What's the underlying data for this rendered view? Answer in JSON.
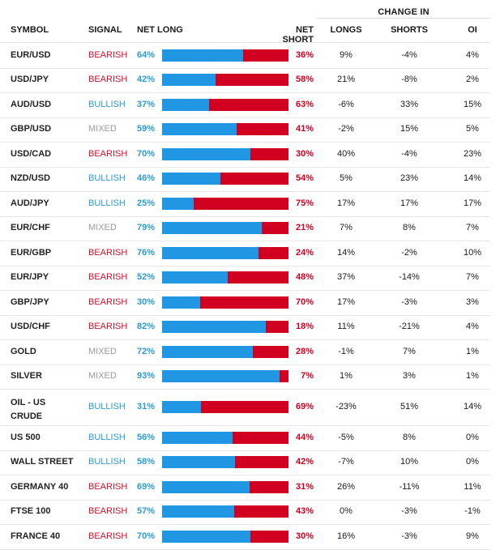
{
  "header": {
    "change_in": "CHANGE IN",
    "symbol": "SYMBOL",
    "signal": "SIGNAL",
    "net_long": "NET LONG",
    "net_short": "NET SHORT",
    "longs": "LONGS",
    "shorts": "SHORTS",
    "oi": "OI"
  },
  "colors": {
    "long": "#2196e3",
    "short": "#d10020",
    "bullish": "#2b9ad8",
    "bearish": "#d3102a",
    "mixed": "#9a9a9a"
  },
  "rows": [
    {
      "symbol": "EUR/USD",
      "signal": "BEARISH",
      "net_long": "64%",
      "net_short": "36%",
      "long_pct": 64,
      "longs": "9%",
      "shorts": "-4%",
      "oi": "4%"
    },
    {
      "symbol": "USD/JPY",
      "signal": "BEARISH",
      "net_long": "42%",
      "net_short": "58%",
      "long_pct": 42,
      "longs": "21%",
      "shorts": "-8%",
      "oi": "2%"
    },
    {
      "symbol": "AUD/USD",
      "signal": "BULLISH",
      "net_long": "37%",
      "net_short": "63%",
      "long_pct": 37,
      "longs": "-6%",
      "shorts": "33%",
      "oi": "15%"
    },
    {
      "symbol": "GBP/USD",
      "signal": "MIXED",
      "net_long": "59%",
      "net_short": "41%",
      "long_pct": 59,
      "longs": "-2%",
      "shorts": "15%",
      "oi": "5%"
    },
    {
      "symbol": "USD/CAD",
      "signal": "BEARISH",
      "net_long": "70%",
      "net_short": "30%",
      "long_pct": 70,
      "longs": "40%",
      "shorts": "-4%",
      "oi": "23%"
    },
    {
      "symbol": "NZD/USD",
      "signal": "BULLISH",
      "net_long": "46%",
      "net_short": "54%",
      "long_pct": 46,
      "longs": "5%",
      "shorts": "23%",
      "oi": "14%"
    },
    {
      "symbol": "AUD/JPY",
      "signal": "BULLISH",
      "net_long": "25%",
      "net_short": "75%",
      "long_pct": 25,
      "longs": "17%",
      "shorts": "17%",
      "oi": "17%"
    },
    {
      "symbol": "EUR/CHF",
      "signal": "MIXED",
      "net_long": "79%",
      "net_short": "21%",
      "long_pct": 79,
      "longs": "7%",
      "shorts": "8%",
      "oi": "7%"
    },
    {
      "symbol": "EUR/GBP",
      "signal": "BEARISH",
      "net_long": "76%",
      "net_short": "24%",
      "long_pct": 76,
      "longs": "14%",
      "shorts": "-2%",
      "oi": "10%"
    },
    {
      "symbol": "EUR/JPY",
      "signal": "BEARISH",
      "net_long": "52%",
      "net_short": "48%",
      "long_pct": 52,
      "longs": "37%",
      "shorts": "-14%",
      "oi": "7%"
    },
    {
      "symbol": "GBP/JPY",
      "signal": "BEARISH",
      "net_long": "30%",
      "net_short": "70%",
      "long_pct": 30,
      "longs": "17%",
      "shorts": "-3%",
      "oi": "3%"
    },
    {
      "symbol": "USD/CHF",
      "signal": "BEARISH",
      "net_long": "82%",
      "net_short": "18%",
      "long_pct": 82,
      "longs": "11%",
      "shorts": "-21%",
      "oi": "4%"
    },
    {
      "symbol": "GOLD",
      "signal": "MIXED",
      "net_long": "72%",
      "net_short": "28%",
      "long_pct": 72,
      "longs": "-1%",
      "shorts": "7%",
      "oi": "1%"
    },
    {
      "symbol": "SILVER",
      "signal": "MIXED",
      "net_long": "93%",
      "net_short": "7%",
      "long_pct": 93,
      "longs": "1%",
      "shorts": "3%",
      "oi": "1%"
    },
    {
      "symbol": "OIL - US CRUDE",
      "signal": "BULLISH",
      "net_long": "31%",
      "net_short": "69%",
      "long_pct": 31,
      "longs": "-23%",
      "shorts": "51%",
      "oi": "14%"
    },
    {
      "symbol": "US 500",
      "signal": "BULLISH",
      "net_long": "56%",
      "net_short": "44%",
      "long_pct": 56,
      "longs": "-5%",
      "shorts": "8%",
      "oi": "0%"
    },
    {
      "symbol": "WALL STREET",
      "signal": "BULLISH",
      "net_long": "58%",
      "net_short": "42%",
      "long_pct": 58,
      "longs": "-7%",
      "shorts": "10%",
      "oi": "0%"
    },
    {
      "symbol": "GERMANY 40",
      "signal": "BEARISH",
      "net_long": "69%",
      "net_short": "31%",
      "long_pct": 69,
      "longs": "26%",
      "shorts": "-11%",
      "oi": "11%"
    },
    {
      "symbol": "FTSE 100",
      "signal": "BEARISH",
      "net_long": "57%",
      "net_short": "43%",
      "long_pct": 57,
      "longs": "0%",
      "shorts": "-3%",
      "oi": "-1%"
    },
    {
      "symbol": "FRANCE 40",
      "signal": "BEARISH",
      "net_long": "70%",
      "net_short": "30%",
      "long_pct": 70,
      "longs": "16%",
      "shorts": "-3%",
      "oi": "9%"
    }
  ]
}
